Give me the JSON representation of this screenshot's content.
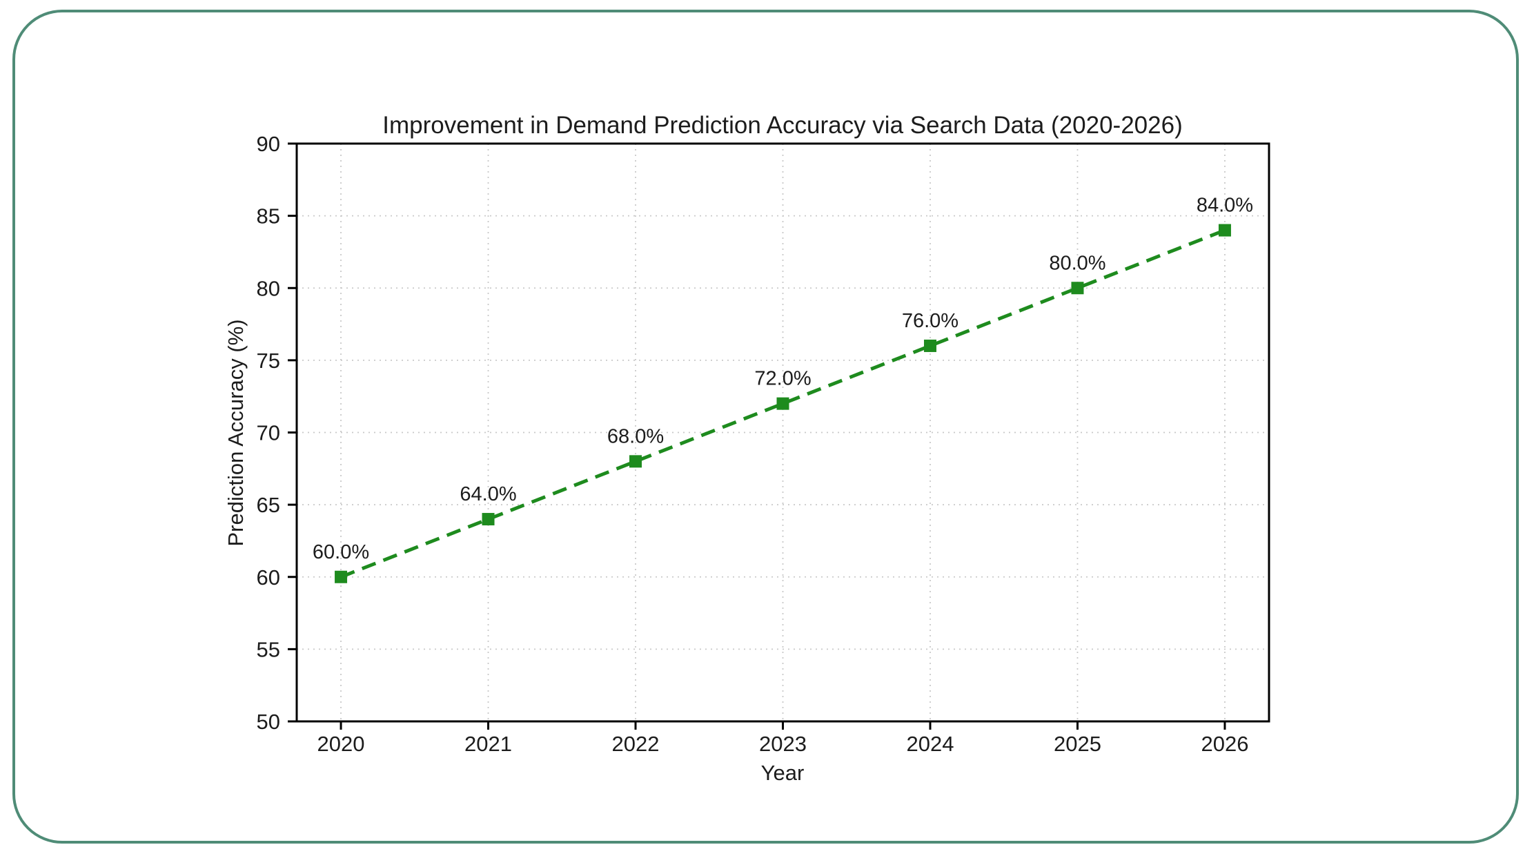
{
  "card": {
    "border_color": "#4f8c77",
    "background": "#ffffff"
  },
  "chart_data": {
    "type": "line",
    "title": "Improvement in Demand Prediction Accuracy via Search Data (2020-2026)",
    "xlabel": "Year",
    "ylabel": "Prediction Accuracy (%)",
    "x": [
      2020,
      2021,
      2022,
      2023,
      2024,
      2025,
      2026
    ],
    "series": [
      {
        "name": "Prediction Accuracy",
        "values": [
          60.0,
          64.0,
          68.0,
          72.0,
          76.0,
          80.0,
          84.0
        ]
      }
    ],
    "point_labels": [
      "60.0%",
      "64.0%",
      "68.0%",
      "72.0%",
      "76.0%",
      "80.0%",
      "84.0%"
    ],
    "ylim": [
      50,
      90
    ],
    "yticks": [
      50,
      55,
      60,
      65,
      70,
      75,
      80,
      85,
      90
    ],
    "xticks": [
      "2020",
      "2021",
      "2022",
      "2023",
      "2024",
      "2025",
      "2026"
    ],
    "line_color": "#1e8b1e",
    "line_style": "dashed",
    "marker": "square",
    "grid": true,
    "grid_color": "#c9c9c9",
    "frame_color": "#000000",
    "legend_position": "none"
  }
}
